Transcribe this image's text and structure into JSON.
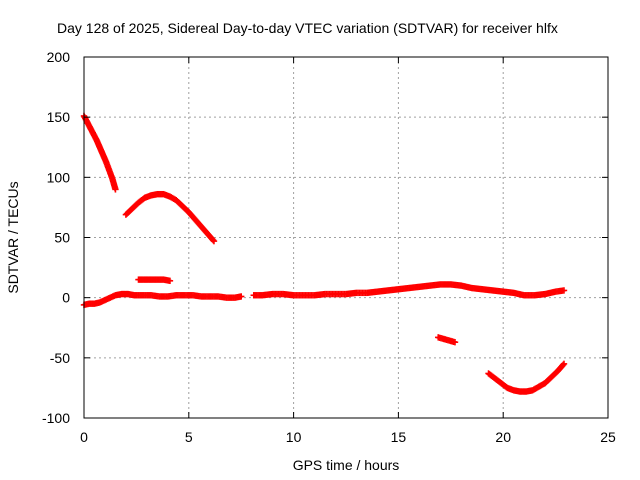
{
  "chart_data": {
    "type": "scatter",
    "title": "Day 128 of 2025, Sidereal Day-to-day VTEC variation (SDTVAR) for receiver hlfx",
    "xlabel": "GPS time / hours",
    "ylabel": "SDTVAR / TECUs",
    "xlim": [
      0,
      25
    ],
    "ylim": [
      -100,
      200
    ],
    "xticks": [
      "0",
      "5",
      "10",
      "15",
      "20",
      "25"
    ],
    "yticks": [
      "-100",
      "-50",
      "0",
      "50",
      "100",
      "150",
      "200"
    ],
    "grid": true,
    "marker": "plus",
    "color": "#ff0000",
    "series": [
      {
        "name": "segment-1",
        "points": [
          [
            0.0,
            151
          ],
          [
            0.15,
            146
          ],
          [
            0.3,
            141
          ],
          [
            0.45,
            136
          ],
          [
            0.6,
            131
          ],
          [
            0.75,
            125
          ],
          [
            0.9,
            119
          ],
          [
            1.05,
            113
          ],
          [
            1.2,
            106
          ],
          [
            1.35,
            99
          ],
          [
            1.5,
            90
          ]
        ]
      },
      {
        "name": "segment-2",
        "points": [
          [
            2.0,
            69
          ],
          [
            2.3,
            74
          ],
          [
            2.6,
            79
          ],
          [
            2.9,
            83
          ],
          [
            3.2,
            85
          ],
          [
            3.5,
            86
          ],
          [
            3.8,
            86
          ],
          [
            4.1,
            84
          ],
          [
            4.4,
            81
          ],
          [
            4.7,
            76
          ],
          [
            5.0,
            71
          ],
          [
            5.3,
            65
          ],
          [
            5.6,
            59
          ],
          [
            5.9,
            53
          ],
          [
            6.2,
            47
          ]
        ]
      },
      {
        "name": "segment-3",
        "points": [
          [
            2.6,
            15
          ],
          [
            2.9,
            15
          ],
          [
            3.2,
            15
          ],
          [
            3.5,
            15
          ],
          [
            3.8,
            15
          ],
          [
            4.1,
            14
          ]
        ]
      },
      {
        "name": "segment-4",
        "points": [
          [
            0.0,
            -6
          ],
          [
            0.25,
            -5
          ],
          [
            0.5,
            -5
          ],
          [
            0.75,
            -4
          ],
          [
            1.0,
            -2
          ],
          [
            1.25,
            0
          ],
          [
            1.5,
            2
          ],
          [
            1.8,
            3
          ],
          [
            2.1,
            3
          ],
          [
            2.4,
            2
          ],
          [
            2.8,
            2
          ],
          [
            3.2,
            2
          ],
          [
            3.6,
            1
          ],
          [
            4.0,
            1
          ],
          [
            4.4,
            2
          ],
          [
            4.8,
            2
          ],
          [
            5.2,
            2
          ],
          [
            5.6,
            1
          ],
          [
            6.0,
            1
          ],
          [
            6.4,
            1
          ],
          [
            6.8,
            0
          ],
          [
            7.2,
            0
          ],
          [
            7.5,
            1
          ]
        ]
      },
      {
        "name": "segment-5",
        "points": [
          [
            8.1,
            2
          ],
          [
            8.5,
            2
          ],
          [
            9.0,
            3
          ],
          [
            9.5,
            3
          ],
          [
            10.0,
            2
          ],
          [
            10.5,
            2
          ],
          [
            11.0,
            2
          ],
          [
            11.5,
            3
          ],
          [
            12.0,
            3
          ],
          [
            12.5,
            3
          ],
          [
            13.0,
            4
          ],
          [
            13.5,
            4
          ],
          [
            14.0,
            5
          ],
          [
            14.5,
            6
          ],
          [
            15.0,
            7
          ],
          [
            15.5,
            8
          ],
          [
            16.0,
            9
          ],
          [
            16.5,
            10
          ],
          [
            17.0,
            11
          ],
          [
            17.5,
            11
          ],
          [
            18.0,
            10
          ],
          [
            18.5,
            8
          ],
          [
            19.0,
            7
          ],
          [
            19.5,
            6
          ],
          [
            20.0,
            5
          ],
          [
            20.5,
            4
          ],
          [
            21.0,
            2
          ],
          [
            21.5,
            2
          ],
          [
            22.0,
            3
          ],
          [
            22.5,
            5
          ],
          [
            22.9,
            6
          ]
        ]
      },
      {
        "name": "segment-6",
        "points": [
          [
            16.9,
            -33
          ],
          [
            17.1,
            -34
          ],
          [
            17.3,
            -35
          ],
          [
            17.5,
            -36
          ],
          [
            17.7,
            -37
          ]
        ]
      },
      {
        "name": "segment-7",
        "points": [
          [
            19.3,
            -63
          ],
          [
            19.6,
            -67
          ],
          [
            19.9,
            -71
          ],
          [
            20.2,
            -75
          ],
          [
            20.5,
            -77
          ],
          [
            20.8,
            -78
          ],
          [
            21.1,
            -78
          ],
          [
            21.4,
            -77
          ],
          [
            21.7,
            -74
          ],
          [
            22.0,
            -71
          ],
          [
            22.3,
            -66
          ],
          [
            22.6,
            -61
          ],
          [
            22.9,
            -55
          ]
        ]
      }
    ]
  }
}
